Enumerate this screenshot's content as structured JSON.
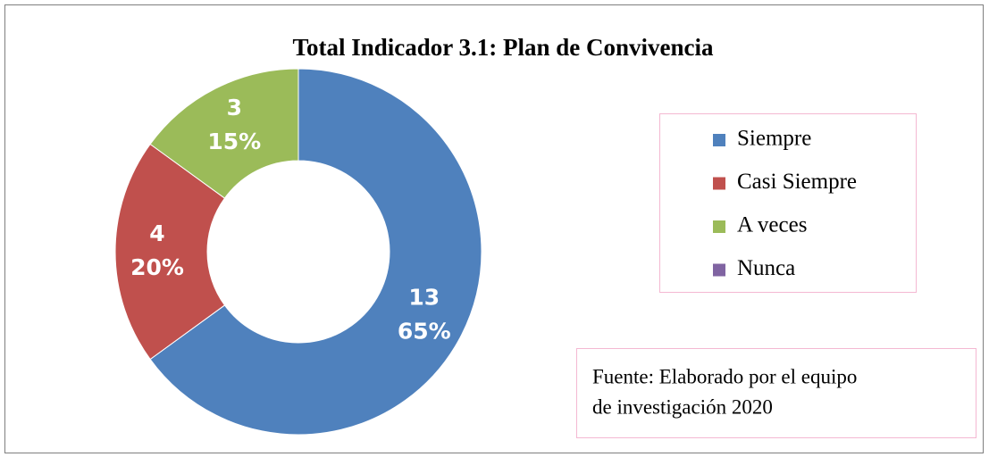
{
  "chart_data": {
    "type": "donut",
    "title": "Total Indicador 3.1: Plan de Convivencia",
    "categories": [
      "Siempre",
      "Casi Siempre",
      "A veces",
      "Nunca"
    ],
    "values": [
      13,
      4,
      3,
      0
    ],
    "percent_labels": [
      "65%",
      "20%",
      "15%",
      null
    ],
    "colors": [
      "#4f81bd",
      "#c0504d",
      "#9bbb59",
      "#8064a2"
    ],
    "legend": "right",
    "source": [
      "Fuente: Elaborado por el equipo",
      "de investigación 2020"
    ]
  }
}
